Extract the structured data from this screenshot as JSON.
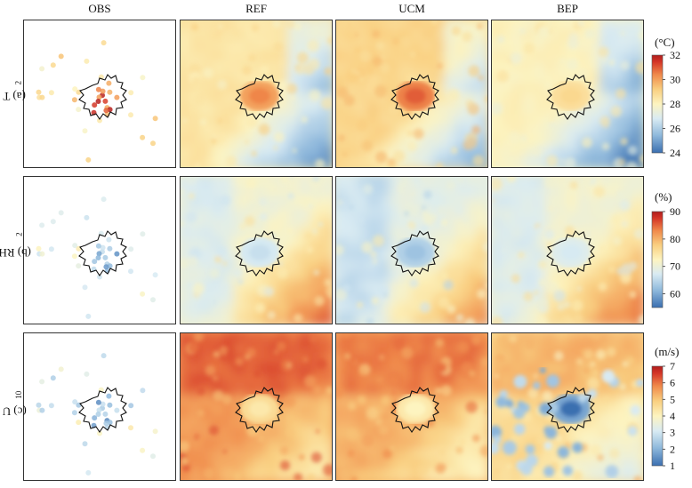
{
  "columns": [
    "OBS",
    "REF",
    "UCM",
    "BEP"
  ],
  "rows": [
    {
      "label_main": "(a) T",
      "label_sub": "2",
      "unit": "(°C)",
      "ticks": [
        "32",
        "30",
        "28",
        "26",
        "24"
      ],
      "range": [
        24,
        32
      ],
      "palette": [
        "#3b6fb0",
        "#8fb9dc",
        "#d9ebf3",
        "#fdf4c0",
        "#f9cf80",
        "#f08a4b",
        "#d43527",
        "#b01d1d"
      ]
    },
    {
      "label_main": "(b) RH",
      "label_sub": "2",
      "unit": "(%)",
      "ticks": [
        "90",
        "80",
        "70",
        "60"
      ],
      "range": [
        55,
        90
      ],
      "palette": [
        "#3b6fb0",
        "#8fb9dc",
        "#d9ebf3",
        "#fdf4c0",
        "#f9cf80",
        "#f08a4b",
        "#d43527",
        "#b01d1d"
      ]
    },
    {
      "label_main": "(c) U",
      "label_sub": "10",
      "unit": "(m/s)",
      "ticks": [
        "7",
        "6",
        "5",
        "4",
        "3",
        "2",
        "1"
      ],
      "range": [
        1,
        7
      ],
      "palette": [
        "#3b6fb0",
        "#8fb9dc",
        "#d9ebf3",
        "#fdf4c0",
        "#f9cf80",
        "#f08a4b",
        "#d43527",
        "#b01d1d"
      ]
    }
  ],
  "chart_data": {
    "type": "heatmap",
    "panels_layout": "3 rows x 4 columns of spatial maps; first column shows station observations as dots",
    "columns": [
      "OBS",
      "REF",
      "UCM",
      "BEP"
    ],
    "variables": [
      {
        "name": "T2",
        "unit": "°C",
        "colorbar_min": 24,
        "colorbar_max": 32,
        "ticks": [
          24,
          26,
          28,
          30,
          32
        ],
        "field_typical": {
          "REF": 28.5,
          "UCM": 29.0,
          "BEP": 28.0
        },
        "urban_center": {
          "REF": 30.0,
          "UCM": 30.5,
          "BEP": 28.7
        }
      },
      {
        "name": "RH2",
        "unit": "%",
        "colorbar_min": 55,
        "colorbar_max": 90,
        "ticks": [
          60,
          70,
          80,
          90
        ],
        "field_typical": {
          "REF": 71,
          "UCM": 69,
          "BEP": 71
        },
        "urban_center": {
          "REF": 67,
          "UCM": 64,
          "BEP": 68
        }
      },
      {
        "name": "U10",
        "unit": "m/s",
        "colorbar_min": 1,
        "colorbar_max": 7,
        "ticks": [
          1,
          2,
          3,
          4,
          5,
          6,
          7
        ],
        "field_typical": {
          "REF": 5.6,
          "UCM": 5.3,
          "BEP": 4.6
        },
        "urban_center": {
          "REF": 4.6,
          "UCM": 4.3,
          "BEP": 1.8
        }
      }
    ]
  }
}
